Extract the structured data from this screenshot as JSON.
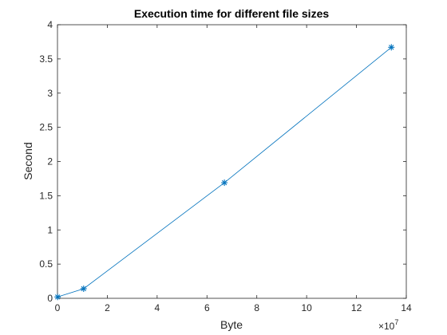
{
  "chart_data": {
    "type": "line",
    "title": "Execution time for different file sizes",
    "xlabel": "Byte",
    "ylabel": "Second",
    "x_exponent_base": "×10",
    "x_exponent_power": "7",
    "xlim": [
      0,
      14
    ],
    "ylim": [
      0,
      4
    ],
    "x_ticks": [
      "0",
      "2",
      "4",
      "6",
      "8",
      "10",
      "12",
      "14"
    ],
    "y_ticks": [
      "0",
      "0.5",
      "1",
      "1.5",
      "2",
      "2.5",
      "3",
      "3.5",
      "4"
    ],
    "grid": false,
    "series": [
      {
        "x": [
          0.005,
          1.05,
          6.7,
          13.4
        ],
        "y": [
          0.02,
          0.14,
          1.69,
          3.67
        ],
        "color": "#0072bd",
        "marker": "asterisk"
      }
    ]
  }
}
